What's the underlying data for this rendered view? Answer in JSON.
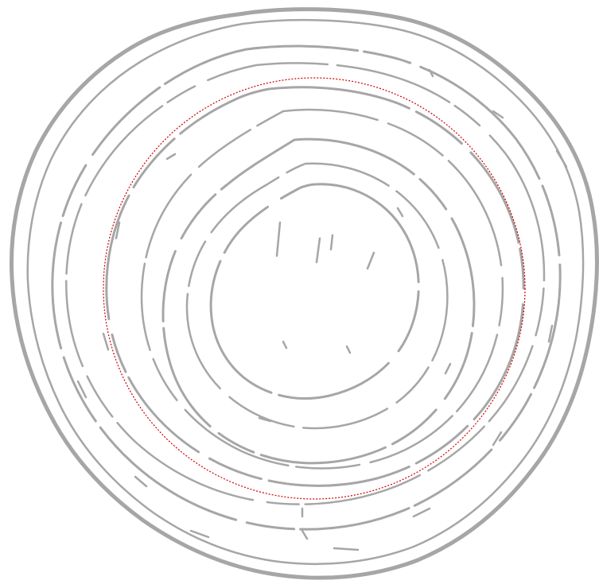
{
  "drawing": {
    "subject": "wood-grain-rings",
    "background_color": "#ffffff",
    "line_color": "#a6a6a6",
    "guide_circle_color": "#cc0000",
    "guide_circle_style": "dotted"
  }
}
